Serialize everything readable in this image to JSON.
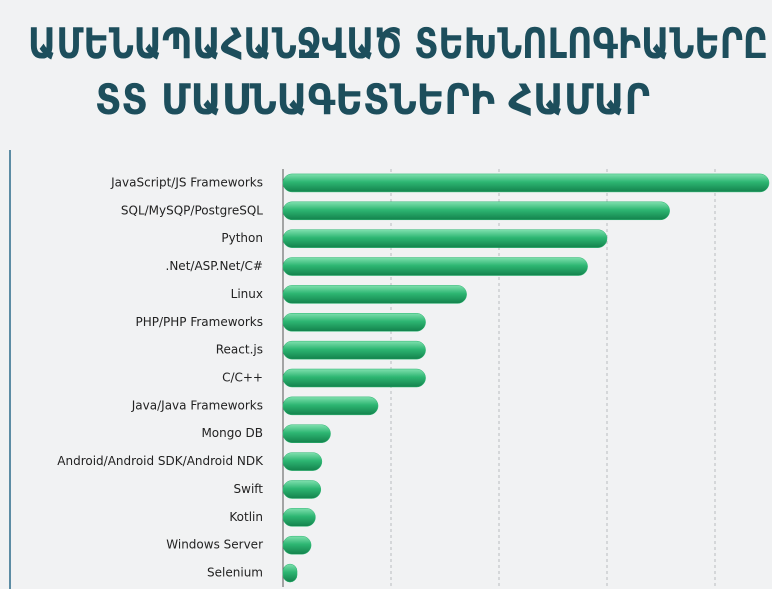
{
  "chart_data": {
    "type": "barh",
    "title": [
      "ԱՄԵՆԱՊԱՀԱՆՋՎԱԾ ՏԵԽՆՈԼՈԳԻԱՆԵՐԸ",
      "ՏՏ ՄԱՍՆԱԳԵՏՆԵՐԻ ՀԱՄԱՐ"
    ],
    "categories": [
      "JavaScript/JS Frameworks",
      "SQL/MySQP/PostgreSQL",
      "Python",
      ".Net/ASP.Net/C#",
      "Linux",
      "PHP/PHP Frameworks",
      "React.js",
      "C/C++",
      "Java/Java Frameworks",
      "Mongo DB",
      "Android/Android SDK/Android NDK",
      "Swift",
      "Kotlin",
      "Windows Server",
      "Selenium"
    ],
    "values": [
      45,
      35.8,
      30,
      28.2,
      17,
      13.2,
      13.2,
      13.2,
      8.8,
      4.4,
      3.6,
      3.5,
      3,
      2.6,
      1.3
    ],
    "color": "#2db672",
    "xlim": [
      0,
      45
    ],
    "xticks": [
      10,
      20,
      30,
      40
    ],
    "grid": true
  }
}
